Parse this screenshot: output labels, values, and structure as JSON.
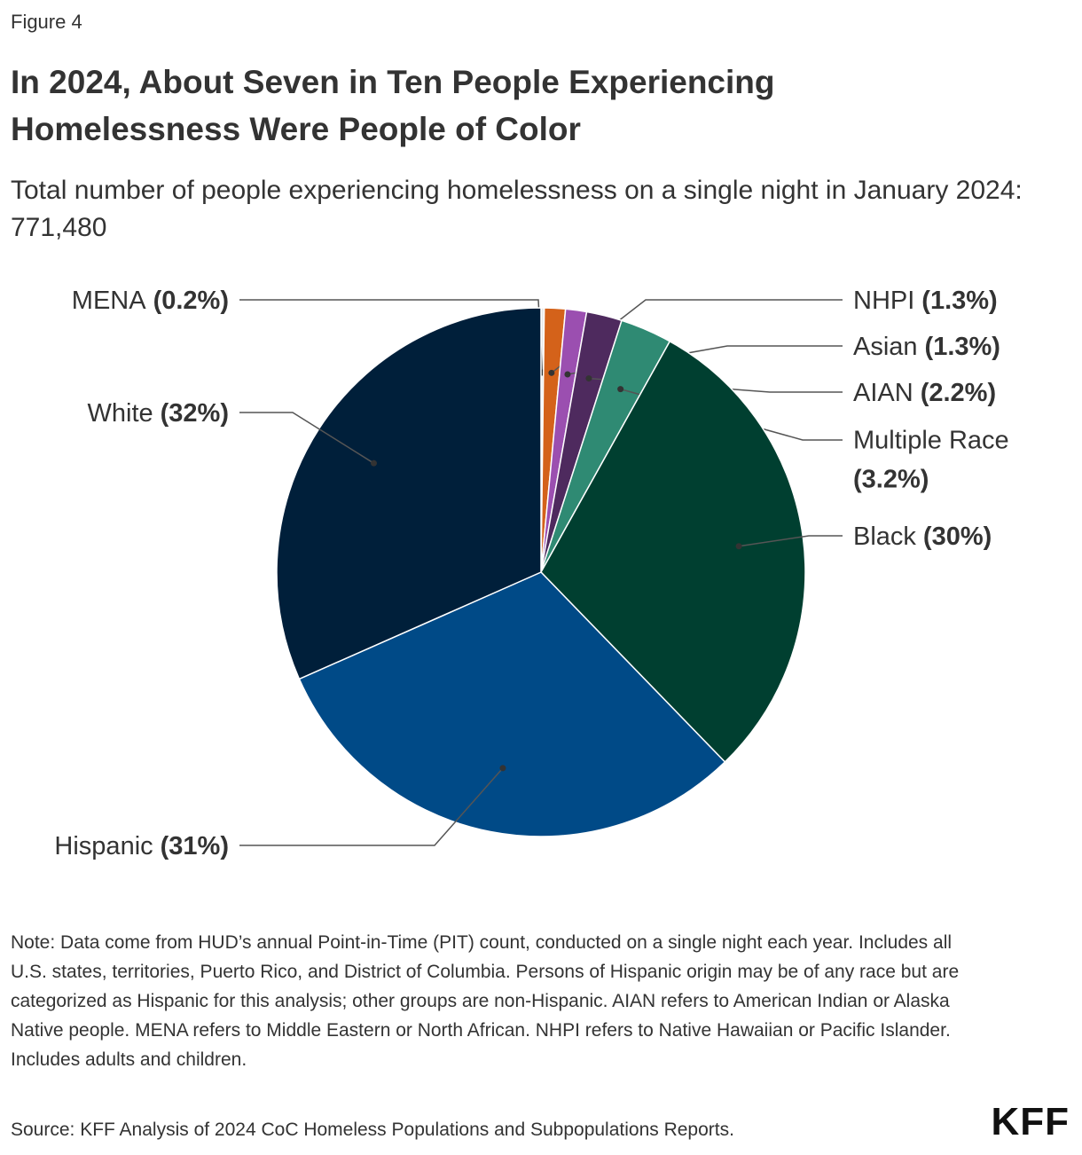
{
  "figure_label": "Figure 4",
  "chart_data": {
    "type": "pie",
    "title": "In 2024, About Seven in Ten People Experiencing Homelessness Were People of Color",
    "subtitle": "Total number of people experiencing homelessness on a single night in January 2024: 771,480",
    "categories": [
      "MENA",
      "NHPI",
      "Asian",
      "AIAN",
      "Multiple Race",
      "Black",
      "Hispanic",
      "White"
    ],
    "values": [
      0.2,
      1.3,
      1.3,
      2.2,
      3.2,
      30,
      31,
      32
    ],
    "value_labels": [
      "(0.2%)",
      "(1.3%)",
      "(1.3%)",
      "(2.2%)",
      "(3.2%)",
      "(30%)",
      "(31%)",
      "(32%)"
    ],
    "colors": [
      "#e9e9e9",
      "#d4621a",
      "#9b4fb0",
      "#4e2a5e",
      "#2f8a73",
      "#003f30",
      "#004a87",
      "#001f3a"
    ]
  },
  "note": "Note: Data come from HUD’s annual Point-in-Time (PIT) count, conducted on a single night each year. Includes all U.S. states, territories, Puerto Rico, and District of Columbia. Persons of Hispanic origin may be of any race but are categorized as Hispanic for this analysis; other groups are non-Hispanic. AIAN refers to American Indian or Alaska Native people. MENA refers to Middle Eastern or North African. NHPI refers to Native Hawaiian or Pacific Islander. Includes adults and children.",
  "source": "Source: KFF Analysis of 2024 CoC Homeless Populations and Subpopulations Reports.",
  "logo": "KFF"
}
